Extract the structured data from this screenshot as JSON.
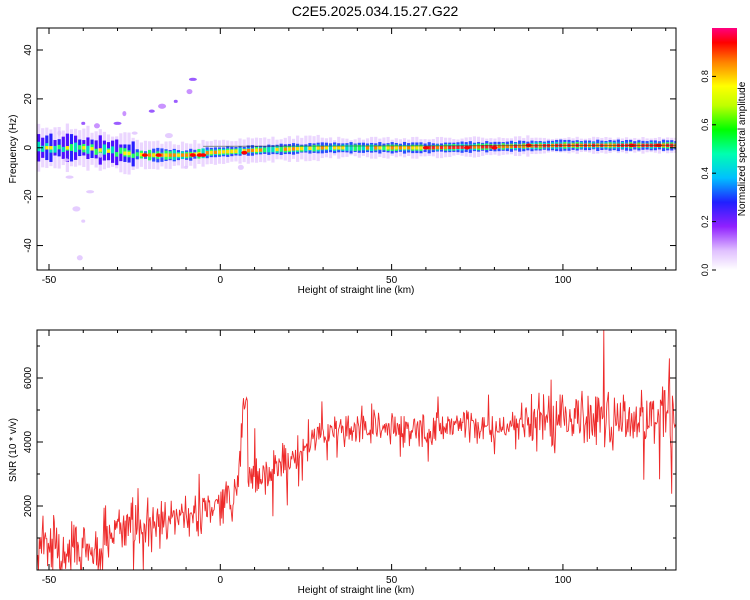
{
  "figure_title": "C2E5.2025.034.15.27.G22",
  "chart_data": [
    {
      "type": "heatmap",
      "title": "C2E5.2025.034.15.27.G22",
      "xlabel": "Height of straight line (km)",
      "ylabel": "Frequency (Hz)",
      "xlim": [
        -53.5,
        133
      ],
      "ylim": [
        -50,
        49
      ],
      "xticks": [
        -50,
        0,
        50,
        100
      ],
      "yticks": [
        -40,
        -20,
        0,
        20,
        40
      ],
      "colorbar": {
        "label": "Normalized spectral amplitude",
        "range": [
          0,
          1
        ],
        "ticks": [
          0.0,
          0.2,
          0.4,
          0.6,
          0.8
        ],
        "colormap": [
          "#ffffff",
          "#e0c0ff",
          "#9020ff",
          "#2020ff",
          "#00c0ff",
          "#00ffb0",
          "#00ff00",
          "#c0ff00",
          "#ffff00",
          "#ff8000",
          "#ff0000",
          "#ff0080"
        ]
      },
      "ridge": [
        {
          "x": -53,
          "f": 0
        },
        {
          "x": -40,
          "f": 0
        },
        {
          "x": -30,
          "f": -2
        },
        {
          "x": -22,
          "f": -3
        },
        {
          "x": -10,
          "f": -3
        },
        {
          "x": -4,
          "f": -2
        },
        {
          "x": 10,
          "f": -1
        },
        {
          "x": 30,
          "f": 0
        },
        {
          "x": 60,
          "f": 0
        },
        {
          "x": 100,
          "f": 1
        },
        {
          "x": 133,
          "f": 1
        }
      ]
    },
    {
      "type": "line",
      "xlabel": "Height of straight line (km)",
      "ylabel": "SNR (10 * v/v)",
      "xlim": [
        -53.5,
        133
      ],
      "ylim": [
        0,
        7500
      ],
      "xticks": [
        -50,
        0,
        50,
        100
      ],
      "yticks": [
        2000,
        4000,
        6000
      ],
      "color": "#ee2a2a",
      "x": [
        -53,
        -50,
        -45,
        -40,
        -35,
        -30,
        -25,
        -20,
        -15,
        -10,
        -5,
        0,
        5,
        7,
        8,
        10,
        15,
        20,
        25,
        30,
        35,
        40,
        50,
        60,
        70,
        80,
        90,
        100,
        110,
        115,
        120,
        125,
        130,
        133
      ],
      "y": [
        700,
        900,
        700,
        500,
        900,
        1300,
        1300,
        1200,
        1500,
        1700,
        1900,
        2100,
        2400,
        5200,
        2600,
        2800,
        3000,
        3300,
        3900,
        4300,
        4400,
        4400,
        4400,
        4400,
        4500,
        4500,
        4600,
        4800,
        4800,
        4900,
        4700,
        4800,
        5000,
        4600
      ]
    }
  ]
}
